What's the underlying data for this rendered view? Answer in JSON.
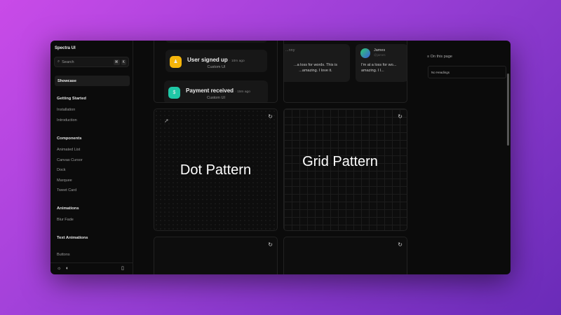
{
  "app": {
    "title": "Spectra UI"
  },
  "sidebar": {
    "search": {
      "placeholder": "Search",
      "shortcut": [
        "⌘",
        "K"
      ]
    },
    "active": "Showcase",
    "groups": [
      {
        "title": "Getting Started",
        "items": [
          "Installation",
          "Introduction"
        ]
      },
      {
        "title": "Components",
        "items": [
          "Animated List",
          "Canvas Cursor",
          "Dock",
          "Marquee",
          "Tweet Card"
        ]
      },
      {
        "title": "Animations",
        "items": [
          "Blur Fade"
        ]
      },
      {
        "title": "Text Animations",
        "items": [
          "Buttons"
        ]
      }
    ]
  },
  "notifications": [
    {
      "title": "User signed up",
      "time": "· 10m ago",
      "sub": "Custom UI",
      "color": "#f5b50a",
      "icon": "user-icon"
    },
    {
      "title": "Payment received",
      "time": "· 15m ago",
      "sub": "Custom UI",
      "color": "#1fc8a6",
      "icon": "payment-icon"
    }
  ],
  "tweets": [
    {
      "name": "...nny",
      "handle": "",
      "text": "...a loss for words. This is ...amazing. I love it."
    },
    {
      "name": "James",
      "handle": "@james",
      "text": "I'm at a loss for wo... amazing. I l..."
    }
  ],
  "patterns": {
    "dot": "Dot Pattern",
    "grid": "Grid Pattern"
  },
  "toc": {
    "title": "On this page",
    "empty": "No Headings"
  }
}
